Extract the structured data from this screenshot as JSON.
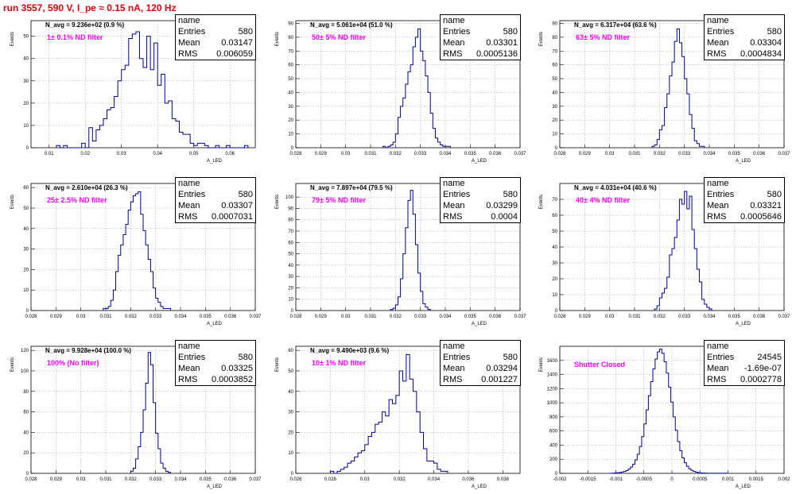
{
  "title": "run 3557,   590 V, I_pe ≈ 0.15 nA, 120 Hz",
  "chart_data": [
    {
      "type": "bar",
      "name": "h_asym82",
      "navg": "N_avg = 9.236e+02 (0.9 %)",
      "filter": "1± 0.1% ND filter",
      "entries": "580",
      "mean": "0.03147",
      "rms": "0.006059",
      "xlabel": "A_LED",
      "ylabel": "Events",
      "xlim": [
        0.005,
        0.067
      ],
      "ylim": [
        0,
        57
      ],
      "xticks": [
        {
          "v": 0.01,
          "l": "0.01"
        },
        {
          "v": 0.02,
          "l": "0.02"
        },
        {
          "v": 0.03,
          "l": "0.03"
        },
        {
          "v": 0.04,
          "l": "0.04"
        },
        {
          "v": 0.05,
          "l": "0.05"
        },
        {
          "v": 0.06,
          "l": "0.06"
        }
      ],
      "yticks": [
        0,
        10,
        20,
        30,
        40,
        50
      ],
      "binStart": 0.012,
      "binWidth": 0.001,
      "values": [
        1,
        0,
        1,
        0,
        0,
        0,
        0,
        2,
        0,
        9,
        3,
        8,
        10,
        13,
        17,
        18,
        23,
        30,
        35,
        37,
        49,
        51,
        52,
        40,
        36,
        50,
        35,
        47,
        28,
        33,
        20,
        21,
        13,
        12,
        7,
        6,
        6,
        2,
        1,
        2,
        2,
        1,
        0,
        0,
        1,
        0,
        0,
        1,
        0,
        0,
        0,
        0,
        1
      ]
    },
    {
      "type": "bar",
      "name": "h_asym83",
      "navg": "N_avg = 5.061e+04 (51.0 %)",
      "filter": "50± 5% ND filter",
      "entries": "580",
      "mean": "0.03301",
      "rms": "0.0005136",
      "xlabel": "A_LED",
      "ylabel": "Events",
      "xlim": [
        0.028,
        0.037
      ],
      "ylim": [
        0,
        92
      ],
      "xticks": [
        {
          "v": 0.028,
          "l": "0.028"
        },
        {
          "v": 0.029,
          "l": "0.029"
        },
        {
          "v": 0.03,
          "l": "0.03"
        },
        {
          "v": 0.031,
          "l": "0.031"
        },
        {
          "v": 0.032,
          "l": "0.032"
        },
        {
          "v": 0.033,
          "l": "0.033"
        },
        {
          "v": 0.034,
          "l": "0.034"
        },
        {
          "v": 0.035,
          "l": "0.035"
        },
        {
          "v": 0.036,
          "l": "0.036"
        },
        {
          "v": 0.037,
          "l": "0.037"
        }
      ],
      "yticks": [
        0,
        10,
        20,
        30,
        40,
        50,
        60,
        70,
        80,
        90
      ],
      "binStart": 0.0315,
      "binWidth": 0.0001,
      "values": [
        1,
        0,
        1,
        2,
        4,
        10,
        22,
        30,
        36,
        46,
        55,
        60,
        73,
        80,
        86,
        70,
        63,
        52,
        40,
        25,
        14,
        7,
        4,
        2,
        1,
        1,
        1
      ]
    },
    {
      "type": "bar",
      "name": "h_asym84",
      "navg": "N_avg = 6.317e+04 (63.6 %)",
      "filter": "63± 5% ND filter",
      "entries": "580",
      "mean": "0.03304",
      "rms": "0.0004834",
      "xlabel": "A_LED",
      "ylabel": "Events",
      "xlim": [
        0.028,
        0.037
      ],
      "ylim": [
        0,
        92
      ],
      "xticks": [
        {
          "v": 0.028,
          "l": "0.028"
        },
        {
          "v": 0.029,
          "l": "0.029"
        },
        {
          "v": 0.03,
          "l": "0.03"
        },
        {
          "v": 0.031,
          "l": "0.031"
        },
        {
          "v": 0.032,
          "l": "0.032"
        },
        {
          "v": 0.033,
          "l": "0.033"
        },
        {
          "v": 0.034,
          "l": "0.034"
        },
        {
          "v": 0.035,
          "l": "0.035"
        },
        {
          "v": 0.036,
          "l": "0.036"
        },
        {
          "v": 0.037,
          "l": "0.037"
        }
      ],
      "yticks": [
        0,
        10,
        20,
        30,
        40,
        50,
        60,
        70,
        80,
        90
      ],
      "binStart": 0.0317,
      "binWidth": 0.0001,
      "values": [
        1,
        2,
        6,
        13,
        16,
        29,
        39,
        52,
        62,
        77,
        86,
        76,
        66,
        50,
        39,
        24,
        14,
        5,
        3,
        1,
        1
      ]
    },
    {
      "type": "bar",
      "name": "h_asym85",
      "navg": "N_avg = 2.610e+04 (26.3 %)",
      "filter": "25± 2.5% ND filter",
      "entries": "580",
      "mean": "0.03307",
      "rms": "0.0007031",
      "xlabel": "A_LED",
      "ylabel": "Events",
      "xlim": [
        0.028,
        0.037
      ],
      "ylim": [
        0,
        62
      ],
      "xticks": [
        {
          "v": 0.028,
          "l": "0.028"
        },
        {
          "v": 0.029,
          "l": "0.029"
        },
        {
          "v": 0.03,
          "l": "0.03"
        },
        {
          "v": 0.031,
          "l": "0.031"
        },
        {
          "v": 0.032,
          "l": "0.032"
        },
        {
          "v": 0.033,
          "l": "0.033"
        },
        {
          "v": 0.034,
          "l": "0.034"
        },
        {
          "v": 0.035,
          "l": "0.035"
        },
        {
          "v": 0.036,
          "l": "0.036"
        },
        {
          "v": 0.037,
          "l": "0.037"
        }
      ],
      "yticks": [
        0,
        10,
        20,
        30,
        40,
        50,
        60
      ],
      "binStart": 0.0309,
      "binWidth": 0.0001,
      "values": [
        1,
        1,
        2,
        5,
        10,
        19,
        27,
        32,
        37,
        42,
        49,
        53,
        56,
        57,
        58,
        47,
        39,
        32,
        25,
        19,
        11,
        6,
        4,
        2,
        1,
        1,
        1
      ]
    },
    {
      "type": "bar",
      "name": "h_asym86",
      "navg": "N_avg = 7.897e+04 (79.5 %)",
      "filter": "79± 5% ND filter",
      "entries": "580",
      "mean": "0.03299",
      "rms": "0.0004",
      "xlabel": "A_LED",
      "ylabel": "Events",
      "xlim": [
        0.028,
        0.037
      ],
      "ylim": [
        0,
        112
      ],
      "xticks": [
        {
          "v": 0.028,
          "l": "0.028"
        },
        {
          "v": 0.029,
          "l": "0.029"
        },
        {
          "v": 0.03,
          "l": "0.03"
        },
        {
          "v": 0.031,
          "l": "0.031"
        },
        {
          "v": 0.032,
          "l": "0.032"
        },
        {
          "v": 0.033,
          "l": "0.033"
        },
        {
          "v": 0.034,
          "l": "0.034"
        },
        {
          "v": 0.035,
          "l": "0.035"
        },
        {
          "v": 0.036,
          "l": "0.036"
        },
        {
          "v": 0.037,
          "l": "0.037"
        }
      ],
      "yticks": [
        0,
        10,
        20,
        30,
        40,
        50,
        60,
        70,
        80,
        90,
        100
      ],
      "binStart": 0.0318,
      "binWidth": 0.0001,
      "values": [
        1,
        2,
        5,
        12,
        28,
        50,
        73,
        97,
        106,
        85,
        58,
        33,
        17,
        6,
        3,
        1
      ]
    },
    {
      "type": "bar",
      "name": "h_asym87",
      "navg": "N_avg = 4.031e+04 (40.6 %)",
      "filter": "40± 4% ND filter",
      "entries": "580",
      "mean": "0.03321",
      "rms": "0.0005646",
      "xlabel": "A_LED",
      "ylabel": "Events",
      "xlim": [
        0.028,
        0.037
      ],
      "ylim": [
        0,
        80
      ],
      "xticks": [
        {
          "v": 0.028,
          "l": "0.028"
        },
        {
          "v": 0.029,
          "l": "0.029"
        },
        {
          "v": 0.03,
          "l": "0.03"
        },
        {
          "v": 0.031,
          "l": "0.031"
        },
        {
          "v": 0.032,
          "l": "0.032"
        },
        {
          "v": 0.033,
          "l": "0.033"
        },
        {
          "v": 0.034,
          "l": "0.034"
        },
        {
          "v": 0.035,
          "l": "0.035"
        },
        {
          "v": 0.036,
          "l": "0.036"
        },
        {
          "v": 0.037,
          "l": "0.037"
        }
      ],
      "yticks": [
        0,
        10,
        20,
        30,
        40,
        50,
        60,
        70
      ],
      "binStart": 0.0318,
      "binWidth": 0.0001,
      "values": [
        1,
        3,
        8,
        11,
        14,
        21,
        35,
        39,
        46,
        57,
        70,
        67,
        75,
        64,
        72,
        51,
        39,
        26,
        18,
        7,
        4,
        2,
        1
      ]
    },
    {
      "type": "bar",
      "name": "h_asym80",
      "navg": "N_avg = 9.928e+04 (100.0 %)",
      "filter": "100% (No filter)",
      "entries": "580",
      "mean": "0.03325",
      "rms": "0.0003852",
      "xlabel": "A_LED",
      "ylabel": "Events",
      "xlim": [
        0.028,
        0.037
      ],
      "ylim": [
        0,
        124
      ],
      "xticks": [
        {
          "v": 0.028,
          "l": "0.028"
        },
        {
          "v": 0.029,
          "l": "0.029"
        },
        {
          "v": 0.03,
          "l": "0.03"
        },
        {
          "v": 0.031,
          "l": "0.031"
        },
        {
          "v": 0.032,
          "l": "0.032"
        },
        {
          "v": 0.033,
          "l": "0.033"
        },
        {
          "v": 0.034,
          "l": "0.034"
        },
        {
          "v": 0.035,
          "l": "0.035"
        },
        {
          "v": 0.036,
          "l": "0.036"
        },
        {
          "v": 0.037,
          "l": "0.037"
        }
      ],
      "yticks": [
        0,
        20,
        40,
        60,
        80,
        100,
        120
      ],
      "binStart": 0.032,
      "binWidth": 0.0001,
      "values": [
        2,
        5,
        14,
        26,
        40,
        62,
        88,
        118,
        106,
        69,
        39,
        24,
        10,
        5,
        2,
        1
      ]
    },
    {
      "type": "bar",
      "name": "h_asym81",
      "navg": "N_avg = 9.490e+03 (9.6 %)",
      "filter": "10± 1% ND filter",
      "entries": "580",
      "mean": "0.03294",
      "rms": "0.001227",
      "xlabel": "A_LED",
      "ylabel": "Events",
      "xlim": [
        0.026,
        0.039
      ],
      "ylim": [
        0,
        62
      ],
      "xticks": [
        {
          "v": 0.026,
          "l": "0.026"
        },
        {
          "v": 0.028,
          "l": "0.028"
        },
        {
          "v": 0.03,
          "l": "0.03"
        },
        {
          "v": 0.032,
          "l": "0.032"
        },
        {
          "v": 0.034,
          "l": "0.034"
        },
        {
          "v": 0.036,
          "l": "0.036"
        },
        {
          "v": 0.038,
          "l": "0.038"
        }
      ],
      "yticks": [
        0,
        10,
        20,
        30,
        40,
        50,
        60
      ],
      "binStart": 0.028,
      "binWidth": 0.0002,
      "values": [
        1,
        0,
        1,
        2,
        3,
        5,
        6,
        8,
        10,
        11,
        14,
        18,
        20,
        24,
        25,
        30,
        28,
        36,
        34,
        38,
        50,
        45,
        58,
        46,
        40,
        30,
        20,
        12,
        6,
        6,
        5,
        2,
        1,
        1
      ]
    },
    {
      "type": "bar",
      "name": "hPed_asym",
      "navg": "",
      "filter": "Shutter Closed",
      "entries": "24545",
      "mean": "-1.69e-07",
      "rms": "0.0002778",
      "xlabel": "A_LED",
      "ylabel": "Events",
      "xlim": [
        -0.002,
        0.002
      ],
      "ylim": [
        0,
        1800
      ],
      "xticks": [
        {
          "v": -0.002,
          "l": "-0.002"
        },
        {
          "v": -0.0015,
          "l": "-0.0015"
        },
        {
          "v": -0.001,
          "l": "-0.001"
        },
        {
          "v": -0.0005,
          "l": "-0.0005"
        },
        {
          "v": 0,
          "l": "0"
        },
        {
          "v": 0.0005,
          "l": "0.0005"
        },
        {
          "v": 0.001,
          "l": "0.001"
        },
        {
          "v": 0.0015,
          "l": "0.0015"
        },
        {
          "v": 0.002,
          "l": "0.002"
        }
      ],
      "yticks": [
        0,
        200,
        400,
        600,
        800,
        1000,
        1200,
        1400,
        1600
      ],
      "binStart": -0.0011,
      "binWidth": 4e-05,
      "values": [
        2,
        3,
        5,
        8,
        12,
        18,
        27,
        40,
        60,
        90,
        130,
        190,
        270,
        380,
        520,
        700,
        900,
        1100,
        1300,
        1480,
        1620,
        1720,
        1760,
        1700,
        1580,
        1420,
        1220,
        1010,
        800,
        610,
        450,
        320,
        220,
        150,
        100,
        65,
        42,
        27,
        17,
        10,
        6,
        4,
        3,
        2,
        2,
        1,
        1,
        1,
        1,
        1,
        1,
        1
      ]
    }
  ]
}
